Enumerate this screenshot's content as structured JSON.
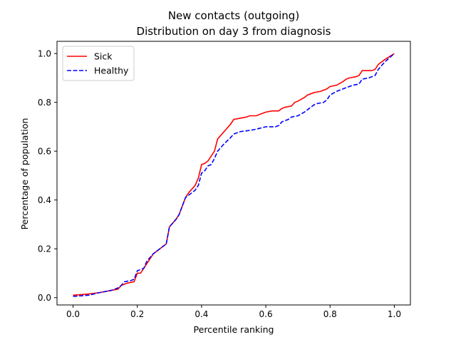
{
  "chart_data": {
    "type": "line",
    "title": "New contacts (outgoing)",
    "subtitle": "Distribution on day 3 from diagnosis",
    "xlabel": "Percentile ranking",
    "ylabel": "Percentage of population",
    "xlim": [
      -0.05,
      1.05
    ],
    "ylim": [
      -0.03,
      1.05
    ],
    "xticks": [
      0.0,
      0.2,
      0.4,
      0.6,
      0.8,
      1.0
    ],
    "xtick_labels": [
      "0.0",
      "0.2",
      "0.4",
      "0.6",
      "0.8",
      "1.0"
    ],
    "yticks": [
      0.0,
      0.2,
      0.4,
      0.6,
      0.8,
      1.0
    ],
    "ytick_labels": [
      "0.0",
      "0.2",
      "0.4",
      "0.6",
      "0.8",
      "1.0"
    ],
    "grid": false,
    "legend": "top-left",
    "series": [
      {
        "name": "Sick",
        "color": "#ff0000",
        "style": "solid",
        "x": [
          0.0,
          0.05,
          0.08,
          0.1,
          0.12,
          0.14,
          0.15,
          0.17,
          0.19,
          0.2,
          0.21,
          0.22,
          0.23,
          0.25,
          0.27,
          0.29,
          0.3,
          0.32,
          0.33,
          0.35,
          0.36,
          0.38,
          0.39,
          0.4,
          0.41,
          0.42,
          0.43,
          0.44,
          0.45,
          0.47,
          0.49,
          0.5,
          0.52,
          0.54,
          0.55,
          0.57,
          0.59,
          0.6,
          0.62,
          0.64,
          0.65,
          0.66,
          0.68,
          0.69,
          0.7,
          0.72,
          0.73,
          0.75,
          0.77,
          0.78,
          0.79,
          0.8,
          0.82,
          0.84,
          0.85,
          0.86,
          0.88,
          0.89,
          0.9,
          0.92,
          0.93,
          0.94,
          0.95,
          0.97,
          1.0
        ],
        "y": [
          0.01,
          0.015,
          0.02,
          0.025,
          0.03,
          0.035,
          0.05,
          0.06,
          0.065,
          0.1,
          0.1,
          0.12,
          0.14,
          0.18,
          0.2,
          0.22,
          0.29,
          0.32,
          0.34,
          0.41,
          0.43,
          0.46,
          0.49,
          0.545,
          0.55,
          0.56,
          0.58,
          0.6,
          0.65,
          0.68,
          0.71,
          0.73,
          0.735,
          0.74,
          0.745,
          0.745,
          0.755,
          0.76,
          0.765,
          0.765,
          0.775,
          0.78,
          0.785,
          0.8,
          0.805,
          0.82,
          0.83,
          0.84,
          0.845,
          0.85,
          0.855,
          0.865,
          0.87,
          0.885,
          0.895,
          0.9,
          0.905,
          0.91,
          0.93,
          0.93,
          0.93,
          0.935,
          0.955,
          0.975,
          1.0
        ]
      },
      {
        "name": "Healthy",
        "color": "#0000ff",
        "style": "dashed",
        "x": [
          0.0,
          0.05,
          0.08,
          0.1,
          0.12,
          0.14,
          0.15,
          0.16,
          0.18,
          0.19,
          0.2,
          0.22,
          0.23,
          0.25,
          0.27,
          0.29,
          0.3,
          0.32,
          0.33,
          0.35,
          0.36,
          0.37,
          0.38,
          0.39,
          0.4,
          0.41,
          0.42,
          0.43,
          0.44,
          0.45,
          0.47,
          0.49,
          0.5,
          0.52,
          0.55,
          0.57,
          0.6,
          0.63,
          0.64,
          0.65,
          0.67,
          0.68,
          0.7,
          0.72,
          0.73,
          0.75,
          0.76,
          0.78,
          0.79,
          0.8,
          0.82,
          0.84,
          0.85,
          0.87,
          0.89,
          0.9,
          0.92,
          0.93,
          0.94,
          0.95,
          0.97,
          1.0
        ],
        "y": [
          0.005,
          0.01,
          0.02,
          0.025,
          0.03,
          0.04,
          0.05,
          0.065,
          0.07,
          0.075,
          0.11,
          0.12,
          0.15,
          0.18,
          0.2,
          0.22,
          0.29,
          0.32,
          0.34,
          0.41,
          0.42,
          0.43,
          0.44,
          0.46,
          0.51,
          0.52,
          0.54,
          0.545,
          0.57,
          0.6,
          0.63,
          0.655,
          0.67,
          0.68,
          0.685,
          0.69,
          0.7,
          0.7,
          0.705,
          0.72,
          0.73,
          0.74,
          0.745,
          0.76,
          0.77,
          0.79,
          0.795,
          0.8,
          0.81,
          0.83,
          0.845,
          0.855,
          0.86,
          0.87,
          0.875,
          0.895,
          0.9,
          0.905,
          0.91,
          0.935,
          0.965,
          1.0
        ]
      }
    ]
  }
}
